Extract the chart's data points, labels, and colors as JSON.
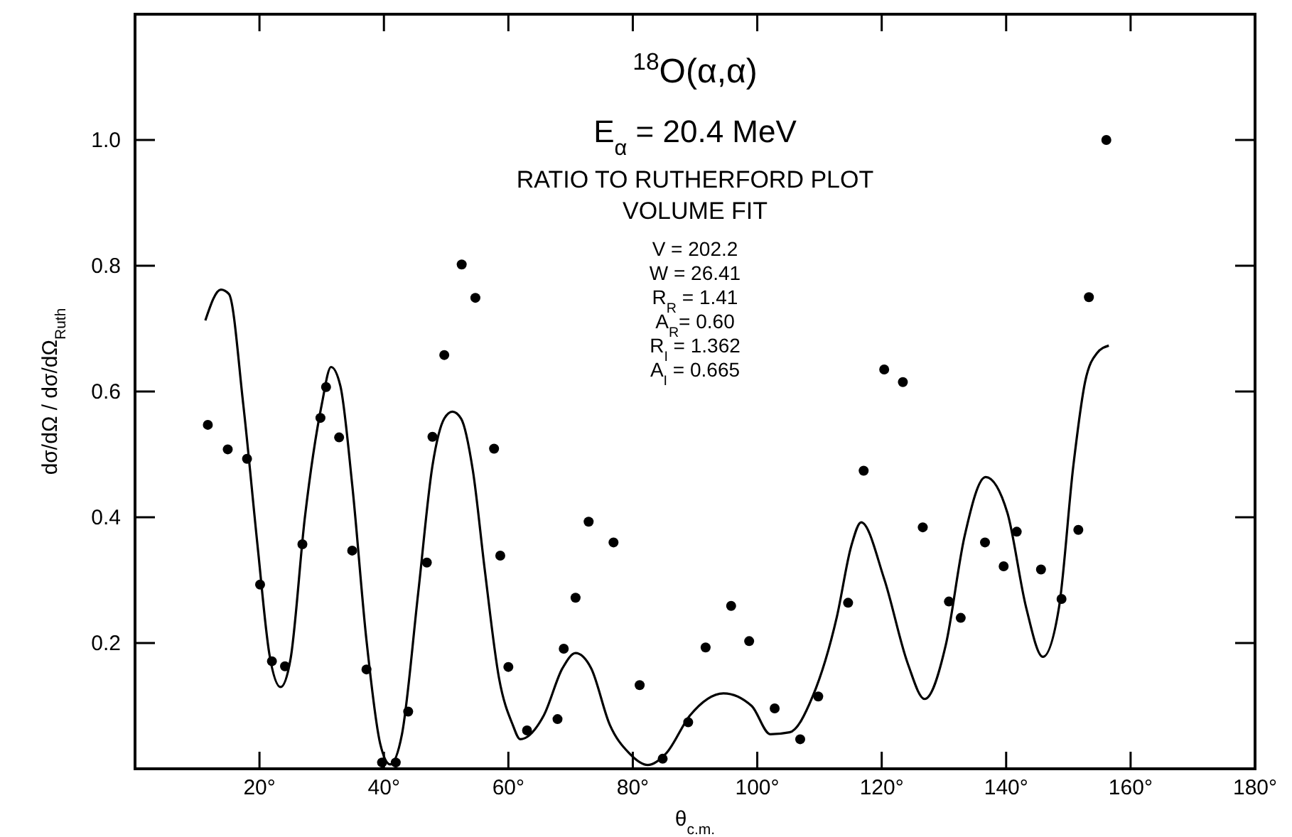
{
  "chart_data": {
    "type": "scatter",
    "title": "$^{18}$O(α,α)",
    "subtitle": "E$_{α}$ = 20.4 MeV",
    "xlabel": "θ$_{c.m.}$",
    "ylabel": "dσ/dΩ / dσ/dΩ$_{Ruth}$",
    "annotations": [
      "RATIO TO RUTHERFORD PLOT",
      "VOLUME FIT",
      "V = 202.2",
      "W = 26.41",
      "R$_{R}$ = 1.41",
      "A$_{R}$= 0.60",
      "R$_{I}$ = 1.362",
      "A$_{I}$ = 0.665"
    ],
    "xlim": [
      0,
      180
    ],
    "ylim": [
      0,
      1.2
    ],
    "xticks": [
      {
        "value": 20,
        "label": "20°"
      },
      {
        "value": 40,
        "label": "40°"
      },
      {
        "value": 60,
        "label": "60°"
      },
      {
        "value": 80,
        "label": "80°"
      },
      {
        "value": 100,
        "label": "100°"
      },
      {
        "value": 120,
        "label": "120°"
      },
      {
        "value": 140,
        "label": "140°"
      },
      {
        "value": 160,
        "label": "160°"
      },
      {
        "value": 180,
        "label": "180°"
      }
    ],
    "yticks": [
      0.2,
      0.4,
      0.6,
      0.8,
      {
        "value": 1.0,
        "label": "1.0"
      }
    ],
    "grid": false,
    "series": [
      {
        "marker": "circle",
        "color": "#000000",
        "x": [
          11.7,
          14.9,
          18.0,
          20.1,
          22.0,
          24.1,
          26.9,
          29.8,
          30.7,
          32.8,
          34.9,
          37.2,
          39.7,
          41.9,
          43.9,
          46.9,
          47.8,
          49.7,
          52.5,
          54.7,
          57.7,
          58.7,
          60.0,
          63.0,
          67.9,
          68.9,
          70.8,
          72.9,
          76.9,
          81.1,
          84.8,
          88.9,
          91.7,
          95.8,
          98.7,
          102.8,
          106.9,
          109.8,
          114.6,
          117.1,
          120.4,
          123.4,
          126.6,
          130.8,
          132.7,
          136.6,
          139.6,
          141.7,
          145.6,
          148.9,
          151.6,
          153.3,
          156.1
        ],
        "values": [
          0.547,
          0.508,
          0.493,
          0.293,
          0.171,
          0.163,
          0.357,
          0.558,
          0.607,
          0.527,
          0.347,
          0.158,
          0.01,
          0.01,
          0.091,
          0.328,
          0.528,
          0.658,
          0.802,
          0.749,
          0.509,
          0.339,
          0.162,
          0.061,
          0.079,
          0.191,
          0.272,
          0.393,
          0.36,
          0.133,
          0.016,
          0.074,
          0.193,
          0.259,
          0.203,
          0.096,
          0.047,
          0.115,
          0.264,
          0.474,
          0.635,
          0.615,
          0.384,
          0.266,
          0.24,
          0.36,
          0.322,
          0.377,
          0.317,
          0.27,
          0.38,
          0.75,
          1.0
        ]
      },
      {
        "type": "line",
        "marker": "none",
        "color": "#000000",
        "line_style": "solid",
        "x": [
          11.3,
          13.8,
          15.1,
          17.4,
          19.7,
          21.6,
          23.4,
          25.0,
          27.3,
          30.0,
          31.5,
          33.0,
          34.9,
          37.2,
          39.4,
          41.0,
          42.9,
          45.5,
          47.8,
          49.7,
          51.0,
          52.4,
          54.3,
          56.2,
          58.5,
          60.7,
          61.9,
          65.7,
          68.7,
          70.8,
          73.3,
          76.3,
          79.4,
          82.4,
          85.4,
          89.2,
          94.6,
          99.1,
          102.1,
          105.2,
          108.9,
          112.8,
          115.1,
          116.7,
          120.4,
          124.2,
          126.9,
          130.3,
          133.3,
          136.7,
          140.2,
          143.2,
          145.9,
          148.5,
          150.8,
          152.7,
          154.6,
          156.5
        ],
        "values": [
          0.713,
          0.762,
          0.755,
          0.579,
          0.354,
          0.182,
          0.13,
          0.175,
          0.4,
          0.579,
          0.639,
          0.609,
          0.452,
          0.204,
          0.04,
          0.007,
          0.055,
          0.279,
          0.482,
          0.557,
          0.568,
          0.557,
          0.474,
          0.317,
          0.144,
          0.07,
          0.047,
          0.085,
          0.16,
          0.184,
          0.16,
          0.07,
          0.025,
          0.006,
          0.025,
          0.085,
          0.12,
          0.1,
          0.055,
          0.058,
          0.115,
          0.242,
          0.354,
          0.392,
          0.302,
          0.167,
          0.111,
          0.197,
          0.369,
          0.464,
          0.407,
          0.257,
          0.178,
          0.257,
          0.482,
          0.616,
          0.661,
          0.673
        ]
      }
    ]
  }
}
